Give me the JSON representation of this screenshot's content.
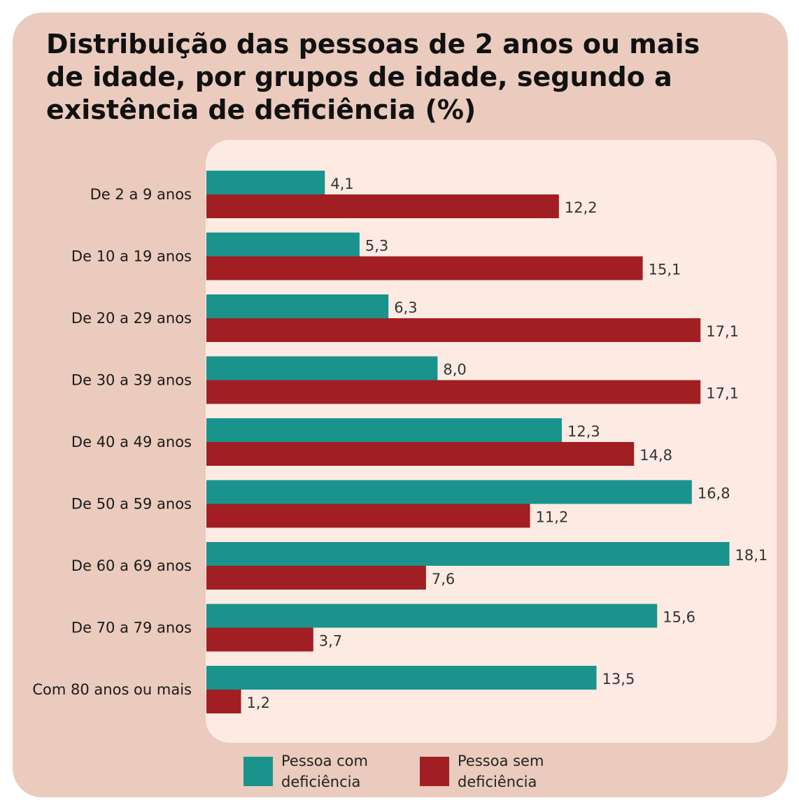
{
  "chart_data": {
    "type": "bar",
    "orientation": "horizontal",
    "title": "Distribuição das pessoas de 2 anos ou mais de idade, por grupos de idade, segundo a existência de deficiência (%)",
    "categories": [
      "De 2 a 9 anos",
      "De 10 a 19 anos",
      "De 20 a 29 anos",
      "De 30 a 39 anos",
      "De 40 a 49 anos",
      "De 50 a 59 anos",
      "De 60 a 69 anos",
      "De 70 a 79 anos",
      "Com 80 anos ou mais"
    ],
    "series": [
      {
        "name": "Pessoa com deficiência",
        "color": "#1a938c",
        "values": [
          4.1,
          5.3,
          6.3,
          8.0,
          12.3,
          16.8,
          18.1,
          15.6,
          13.5
        ],
        "labels": [
          "4,1",
          "5,3",
          "6,3",
          "8,0",
          "12,3",
          "16,8",
          "18,1",
          "15,6",
          "13,5"
        ]
      },
      {
        "name": "Pessoa sem deficiência",
        "color": "#a11e22",
        "values": [
          12.2,
          15.1,
          17.1,
          17.1,
          14.8,
          11.2,
          7.6,
          3.7,
          1.2
        ],
        "labels": [
          "12,2",
          "15,1",
          "17,1",
          "17,1",
          "14,8",
          "11,2",
          "7,6",
          "3,7",
          "1,2"
        ]
      }
    ],
    "xlim": [
      0,
      18.1
    ],
    "grid": false,
    "legend_position": "bottom"
  },
  "legend": {
    "item1": {
      "label": "Pessoa com\ndeficiência",
      "color": "#1a938c"
    },
    "item2": {
      "label": "Pessoa sem\ndeficiência",
      "color": "#a11e22"
    }
  }
}
